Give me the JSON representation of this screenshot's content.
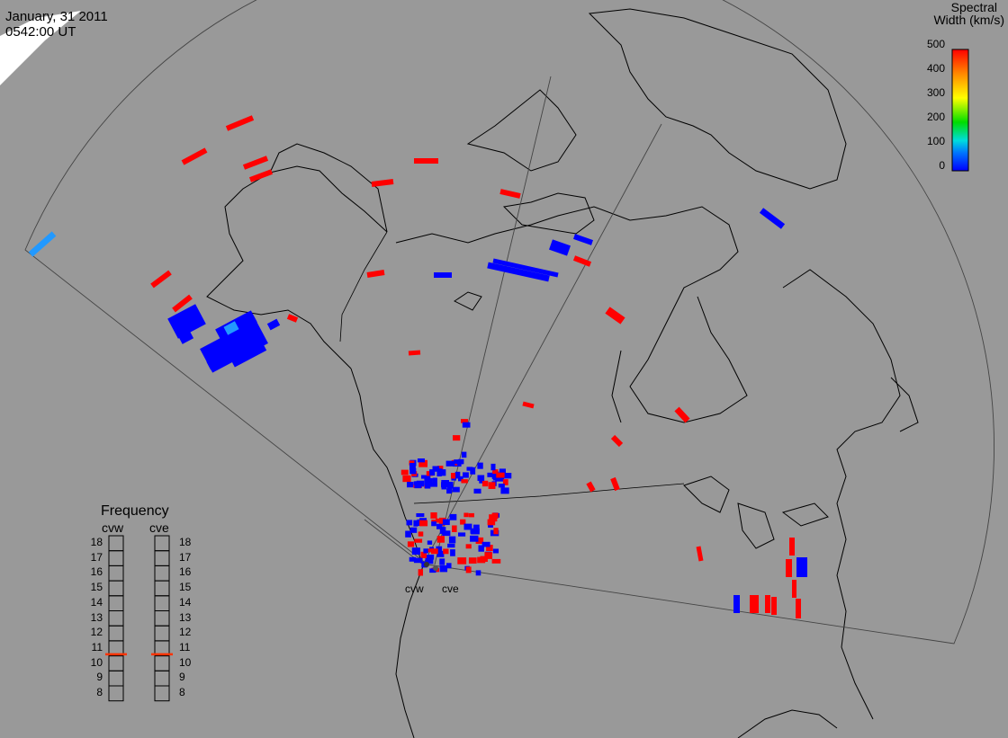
{
  "header": {
    "date": "January, 31 2011",
    "time": "0542:00 UT"
  },
  "colorbar": {
    "title_line1": "Spectral",
    "title_line2": "Width (km/s)",
    "ticks": [
      "500",
      "400",
      "300",
      "200",
      "100",
      "0"
    ],
    "gradient_colors": [
      "#ff0000",
      "#ff8800",
      "#ffff00",
      "#00dd00",
      "#00dddd",
      "#0000ff"
    ]
  },
  "frequency": {
    "title": "Frequency",
    "radars": [
      "cvw",
      "cve"
    ],
    "ticks": [
      "18",
      "17",
      "16",
      "15",
      "14",
      "13",
      "12",
      "11",
      "10",
      "9",
      "8"
    ],
    "current_mhz": {
      "cvw": 10.6,
      "cve": 10.6
    },
    "indicator_color": "#ff3300"
  },
  "radar_sites": [
    "cvw",
    "cve"
  ],
  "colors": {
    "background": "#999999",
    "low_width": "#0000ff",
    "high_width": "#ff0000",
    "mid_width": "#2299ff"
  }
}
